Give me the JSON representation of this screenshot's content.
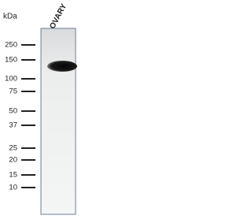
{
  "header": {
    "unit": "kDa",
    "lane": "OVARY"
  },
  "markers": [
    250,
    150,
    100,
    75,
    50,
    37,
    25,
    20,
    15,
    10
  ]
}
